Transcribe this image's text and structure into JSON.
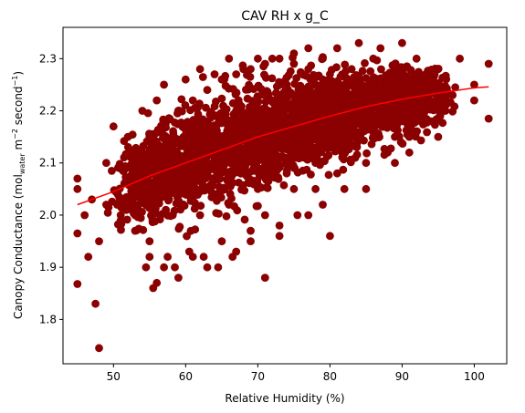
{
  "chart_data": {
    "type": "scatter",
    "title": "CAV RH x g_C",
    "xlabel": "Relative Humidity (%)",
    "ylabel": {
      "prefix": "Canopy Conductance (mol",
      "subscript": "water",
      "middle": " m",
      "sup1": "−2",
      "after": " second",
      "sup2": "−1",
      "suffix": ")"
    },
    "xlim": [
      43,
      104.5
    ],
    "ylim": [
      1.715,
      2.36
    ],
    "xticks": [
      50,
      60,
      70,
      80,
      90,
      100
    ],
    "yticks": [
      1.8,
      1.9,
      2.0,
      2.1,
      2.2,
      2.3
    ],
    "grid": false,
    "colors": {
      "points": "#8b0000",
      "fit": "#ff0000"
    },
    "series": [
      {
        "kind": "points",
        "x": [
          45,
          45,
          45,
          47.5,
          48,
          45,
          46,
          46.5,
          48,
          49,
          50,
          50.5,
          51,
          52,
          53,
          52.5,
          54,
          54.5,
          55,
          55.5,
          56,
          56,
          55,
          57,
          57.5,
          58,
          58.5,
          59,
          60,
          60.5,
          61,
          62,
          62.5,
          63,
          64,
          64.5,
          65,
          66,
          66.5,
          67,
          68,
          69,
          69.5,
          70,
          71,
          71.5,
          72,
          73,
          74,
          75,
          75.5,
          76,
          77,
          78,
          78.5,
          79,
          80,
          81,
          82,
          83,
          84,
          85,
          86,
          87,
          88,
          89,
          90,
          91,
          92,
          93,
          94,
          95,
          96,
          98,
          100,
          102,
          102,
          100,
          97,
          95,
          93,
          91,
          89,
          87,
          85,
          83,
          81,
          79,
          77,
          75,
          73,
          71,
          69,
          67,
          65,
          63,
          61,
          59,
          57,
          55,
          53,
          51,
          49,
          47,
          56,
          58,
          60,
          62,
          64,
          66,
          68,
          70,
          72,
          74,
          76,
          78,
          80,
          82,
          84,
          86,
          88,
          90,
          92,
          55,
          57,
          59,
          61,
          63,
          65,
          67,
          69,
          71,
          73,
          75,
          77,
          79,
          81,
          83,
          85,
          87,
          89,
          62,
          66,
          70,
          74,
          78,
          82,
          86,
          90,
          60,
          64,
          68,
          72,
          76,
          80,
          84,
          88,
          58,
          63,
          67,
          71,
          75,
          79,
          83,
          87
        ],
        "y": [
          1.868,
          2.07,
          1.965,
          1.83,
          1.745,
          2.05,
          2.0,
          1.92,
          1.95,
          2.1,
          2.17,
          2.02,
          1.99,
          2.15,
          2.0,
          2.12,
          2.2,
          1.9,
          1.95,
          1.86,
          2.22,
          1.87,
          2.1,
          2.25,
          1.92,
          2.05,
          1.9,
          2.2,
          2.26,
          1.93,
          2.05,
          2.28,
          1.92,
          2.1,
          2.27,
          1.9,
          2.15,
          2.3,
          1.92,
          2.2,
          2.28,
          1.95,
          2.1,
          2.3,
          1.88,
          2.2,
          2.3,
          1.96,
          2.25,
          2.31,
          2.0,
          2.15,
          2.32,
          2.05,
          2.2,
          2.3,
          1.96,
          2.32,
          2.05,
          2.28,
          2.33,
          2.1,
          2.3,
          2.32,
          2.12,
          2.28,
          2.33,
          2.15,
          2.3,
          2.25,
          2.18,
          2.28,
          2.2,
          2.3,
          2.25,
          2.29,
          2.185,
          2.22,
          2.23,
          2.15,
          2.2,
          2.12,
          2.1,
          2.25,
          2.05,
          2.18,
          2.08,
          2.02,
          2.0,
          2.05,
          1.98,
          2.0,
          1.97,
          1.93,
          1.95,
          1.9,
          1.92,
          1.88,
          1.9,
          1.92,
          1.97,
          2.0,
          2.02,
          2.03,
          2.05,
          2.08,
          2.1,
          2.12,
          2.15,
          2.17,
          2.18,
          2.2,
          2.22,
          2.23,
          2.24,
          2.25,
          2.27,
          2.25,
          2.24,
          2.23,
          2.22,
          2.2,
          2.18,
          2.15,
          2.18,
          2.2,
          2.22,
          2.24,
          2.26,
          2.27,
          2.28,
          2.29,
          2.3,
          2.29,
          2.28,
          2.26,
          2.25,
          2.22,
          2.2,
          2.18,
          2.15,
          2.0,
          2.02,
          2.05,
          2.08,
          2.1,
          2.12,
          2.15,
          2.18,
          2.1,
          2.12,
          2.15,
          2.18,
          2.2,
          2.22,
          2.24,
          2.25,
          2.05,
          2.08,
          2.1,
          2.13,
          2.16,
          2.19,
          2.21,
          2.23
        ]
      },
      {
        "kind": "fit",
        "x": [
          45,
          50,
          55,
          60,
          65,
          70,
          75,
          80,
          85,
          90,
          95,
          100,
          102
        ],
        "y": [
          2.02,
          2.045,
          2.075,
          2.1,
          2.125,
          2.15,
          2.17,
          2.19,
          2.208,
          2.222,
          2.234,
          2.244,
          2.246
        ]
      }
    ]
  }
}
